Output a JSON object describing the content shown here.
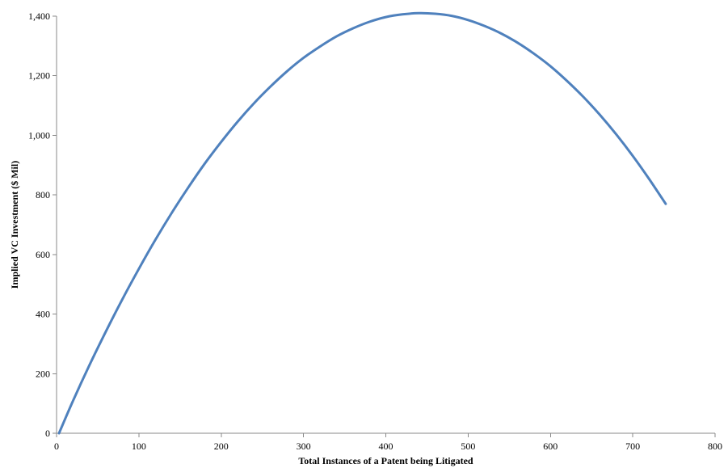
{
  "chart_data": {
    "type": "line",
    "title": "",
    "xlabel": "Total Instances of a Patent being Litigated",
    "ylabel": "Implied VC Investment  ($ Mil)",
    "xlim": [
      0,
      800
    ],
    "ylim": [
      0,
      1400
    ],
    "x_ticks": [
      0,
      100,
      200,
      300,
      400,
      500,
      600,
      700,
      800
    ],
    "y_ticks": [
      0,
      200,
      400,
      600,
      800,
      1000,
      1200,
      1400
    ],
    "x_tick_labels": [
      "0",
      "100",
      "200",
      "300",
      "400",
      "500",
      "600",
      "700",
      "800"
    ],
    "y_tick_labels": [
      "0",
      "200",
      "400",
      "600",
      "800",
      "1,000",
      "1,200",
      "1,400"
    ],
    "grid": false,
    "legend": "none",
    "series": [
      {
        "color": "#4f81bd",
        "x": [
          3,
          20,
          40,
          60,
          80,
          100,
          120,
          140,
          160,
          180,
          200,
          220,
          240,
          260,
          280,
          300,
          320,
          340,
          360,
          380,
          400,
          420,
          440,
          460,
          480,
          500,
          520,
          540,
          560,
          580,
          600,
          620,
          640,
          660,
          680,
          700,
          720,
          740
        ],
        "y": [
          0,
          109,
          229,
          342,
          450,
          552,
          649,
          740,
          825,
          905,
          978,
          1046,
          1108,
          1164,
          1215,
          1260,
          1298,
          1332,
          1359,
          1381,
          1397,
          1406,
          1410,
          1408,
          1401,
          1387,
          1367,
          1342,
          1311,
          1274,
          1232,
          1183,
          1129,
          1069,
          1003,
          931,
          853,
          770
        ]
      }
    ]
  }
}
